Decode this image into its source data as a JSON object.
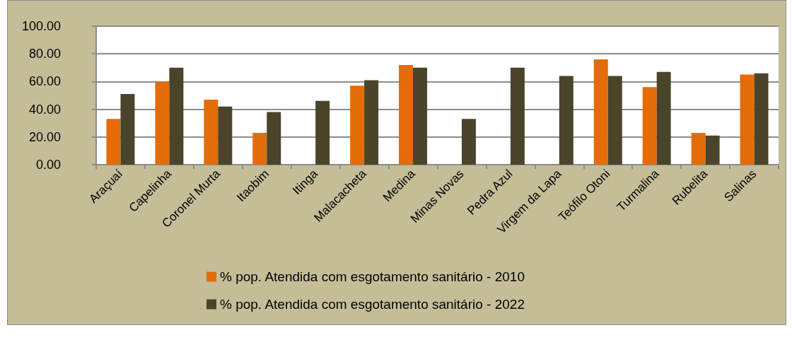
{
  "chart_data": {
    "type": "bar",
    "categories": [
      "Araçuaí",
      "Capelinha",
      "Coronel Murta",
      "Itaobim",
      "Itinga",
      "Malacacheta",
      "Medina",
      "Minas Novas",
      "Pedra Azul",
      "Virgem da Lapa",
      "Teófilo Otoni",
      "Turmalina",
      "Rubelita",
      "Salinas"
    ],
    "series": [
      {
        "name": "% pop. Atendida com esgotamento sanitário - 2010",
        "color": "#e36c09",
        "values": [
          33,
          60,
          47,
          23,
          null,
          57,
          72,
          null,
          null,
          null,
          76,
          56,
          23,
          65
        ]
      },
      {
        "name": "% pop. Atendida com esgotamento sanitário - 2022",
        "color": "#4a452a",
        "values": [
          51,
          70,
          42,
          38,
          46,
          61,
          70,
          33,
          70,
          64,
          64,
          67,
          21,
          66
        ]
      }
    ],
    "ylim": [
      0,
      100
    ],
    "yticks": [
      {
        "value": 0,
        "label": "0.00"
      },
      {
        "value": 20,
        "label": "20.00"
      },
      {
        "value": 40,
        "label": "40.00"
      },
      {
        "value": 60,
        "label": "60.00"
      },
      {
        "value": 80,
        "label": "80.00"
      },
      {
        "value": 100,
        "label": "100.00"
      }
    ],
    "grid": "y",
    "legend": "bottom"
  }
}
